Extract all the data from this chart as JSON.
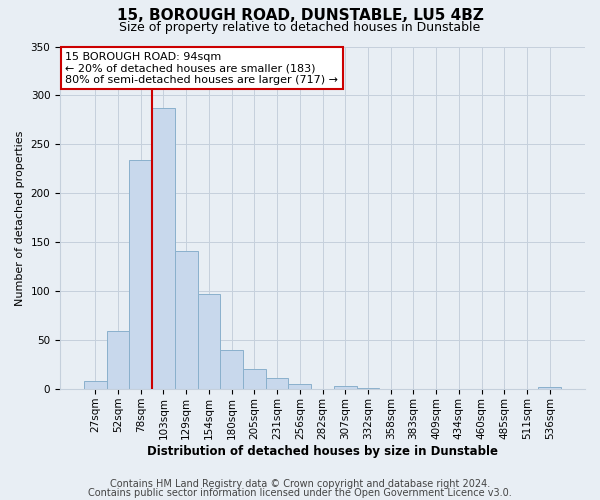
{
  "title": "15, BOROUGH ROAD, DUNSTABLE, LU5 4BZ",
  "subtitle": "Size of property relative to detached houses in Dunstable",
  "xlabel": "Distribution of detached houses by size in Dunstable",
  "ylabel": "Number of detached properties",
  "footnote1": "Contains HM Land Registry data © Crown copyright and database right 2024.",
  "footnote2": "Contains public sector information licensed under the Open Government Licence v3.0.",
  "bar_labels": [
    "27sqm",
    "52sqm",
    "78sqm",
    "103sqm",
    "129sqm",
    "154sqm",
    "180sqm",
    "205sqm",
    "231sqm",
    "256sqm",
    "282sqm",
    "307sqm",
    "332sqm",
    "358sqm",
    "383sqm",
    "409sqm",
    "434sqm",
    "460sqm",
    "485sqm",
    "511sqm",
    "536sqm"
  ],
  "bar_values": [
    8,
    59,
    234,
    287,
    141,
    97,
    40,
    21,
    11,
    5,
    0,
    3,
    1,
    0,
    0,
    0,
    0,
    0,
    0,
    0,
    2
  ],
  "bar_color": "#c8d8ec",
  "bar_edge_color": "#8ab0cc",
  "vline_color": "#cc0000",
  "vline_x_idx": 2.5,
  "annotation_text": "15 BOROUGH ROAD: 94sqm\n← 20% of detached houses are smaller (183)\n80% of semi-detached houses are larger (717) →",
  "annotation_box_edgecolor": "#cc0000",
  "ylim": [
    0,
    350
  ],
  "yticks": [
    0,
    50,
    100,
    150,
    200,
    250,
    300,
    350
  ],
  "background_color": "#e8eef4",
  "plot_background": "#e8eef4",
  "grid_color": "#c5d0dc",
  "title_fontsize": 11,
  "subtitle_fontsize": 9,
  "footnote_fontsize": 7,
  "annotation_fontsize": 8,
  "ylabel_fontsize": 8,
  "xlabel_fontsize": 8.5,
  "tick_fontsize": 7.5
}
